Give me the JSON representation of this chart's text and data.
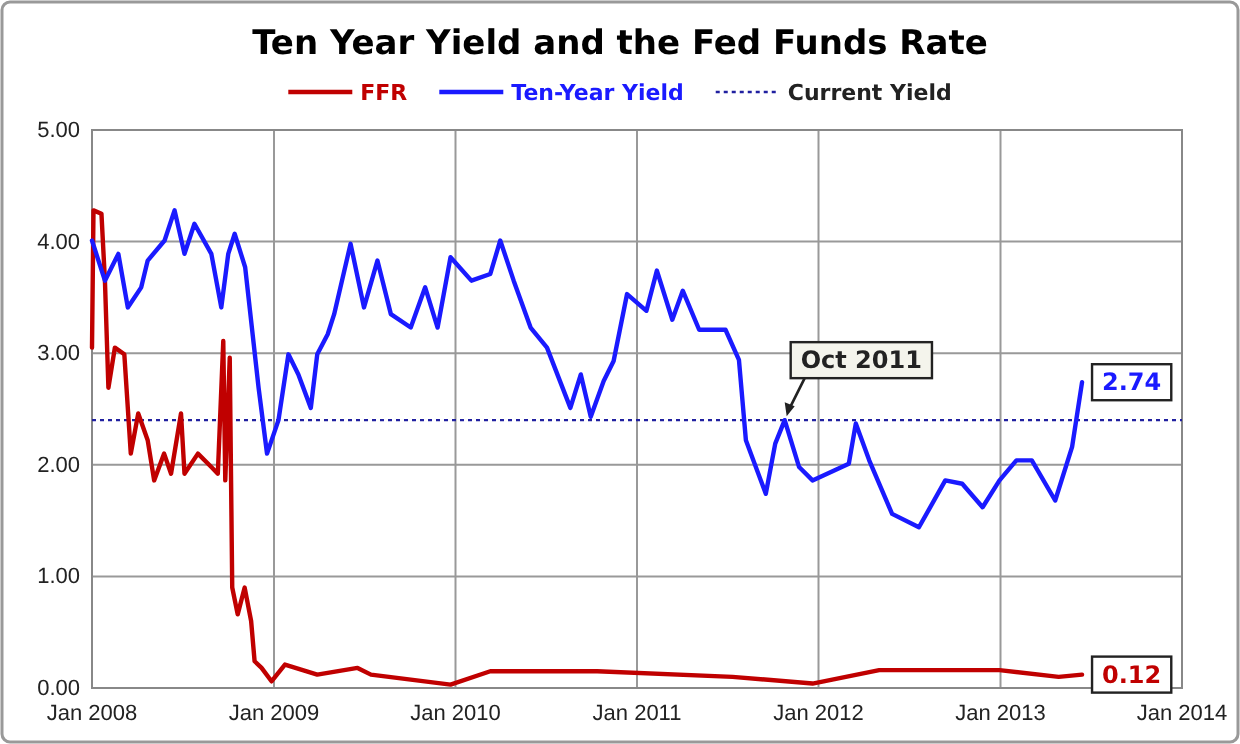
{
  "chart_data": {
    "type": "line",
    "title": "Ten Year Yield and the Fed Funds Rate",
    "xlim": [
      "2008-01-01",
      "2014-01-01"
    ],
    "xticks": [
      {
        "value": "2008-01-01",
        "label": "Jan 2008"
      },
      {
        "value": "2009-01-01",
        "label": "Jan 2009"
      },
      {
        "value": "2010-01-01",
        "label": "Jan 2010"
      },
      {
        "value": "2011-01-01",
        "label": "Jan 2011"
      },
      {
        "value": "2012-01-01",
        "label": "Jan 2012"
      },
      {
        "value": "2013-01-01",
        "label": "Jan 2013"
      },
      {
        "value": "2014-01-01",
        "label": "Jan 2014"
      }
    ],
    "ylim": [
      0,
      5
    ],
    "yticks": [
      {
        "value": 0,
        "label": "0.00"
      },
      {
        "value": 1,
        "label": "1.00"
      },
      {
        "value": 2,
        "label": "2.00"
      },
      {
        "value": 3,
        "label": "3.00"
      },
      {
        "value": 4,
        "label": "4.00"
      },
      {
        "value": 5,
        "label": "5.00"
      }
    ],
    "grid": true,
    "legend": "top",
    "marker": "none",
    "series": [
      {
        "name": "FFR",
        "color": "#c00000",
        "line_style": "solid",
        "x": [
          "2008-01-01",
          "2008-01-04",
          "2008-01-20",
          "2008-01-27",
          "2008-02-03",
          "2008-02-16",
          "2008-03-06",
          "2008-03-19",
          "2008-04-03",
          "2008-04-22",
          "2008-05-05",
          "2008-05-25",
          "2008-06-08",
          "2008-06-28",
          "2008-07-05",
          "2008-08-01",
          "2008-08-28",
          "2008-09-10",
          "2008-09-21",
          "2008-09-25",
          "2008-10-04",
          "2008-10-09",
          "2008-10-20",
          "2008-11-03",
          "2008-11-16",
          "2008-11-23",
          "2008-12-07",
          "2008-12-27",
          "2009-01-23",
          "2009-03-29",
          "2009-06-18",
          "2009-07-15",
          "2009-12-22",
          "2010-03-12",
          "2010-10-13",
          "2011-07-12",
          "2011-12-20",
          "2012-05-02",
          "2012-12-30",
          "2013-04-28",
          "2013-06-14"
        ],
        "values": [
          3.05,
          4.28,
          4.25,
          3.65,
          2.69,
          3.05,
          2.99,
          2.1,
          2.46,
          2.22,
          1.86,
          2.1,
          1.92,
          2.46,
          1.92,
          2.1,
          1.98,
          1.92,
          3.11,
          1.86,
          2.96,
          0.9,
          0.66,
          0.9,
          0.6,
          0.24,
          0.18,
          0.06,
          0.21,
          0.12,
          0.18,
          0.12,
          0.03,
          0.15,
          0.15,
          0.1,
          0.04,
          0.16,
          0.16,
          0.1,
          0.12
        ]
      },
      {
        "name": "Ten-Year Yield",
        "color": "#1a1aff",
        "line_style": "solid",
        "x": [
          "2008-01-01",
          "2008-01-14",
          "2008-01-27",
          "2008-02-23",
          "2008-03-13",
          "2008-04-09",
          "2008-04-22",
          "2008-05-26",
          "2008-06-15",
          "2008-07-05",
          "2008-07-25",
          "2008-08-28",
          "2008-09-17",
          "2008-10-01",
          "2008-10-14",
          "2008-11-04",
          "2008-12-01",
          "2008-12-18",
          "2009-01-10",
          "2009-01-30",
          "2009-02-19",
          "2009-03-16",
          "2009-03-29",
          "2009-04-19",
          "2009-05-02",
          "2009-06-04",
          "2009-07-01",
          "2009-07-28",
          "2009-08-24",
          "2009-10-03",
          "2009-11-01",
          "2009-11-26",
          "2009-12-22",
          "2010-02-02",
          "2010-03-12",
          "2010-04-01",
          "2010-04-28",
          "2010-06-01",
          "2010-07-04",
          "2010-08-20",
          "2010-09-10",
          "2010-09-30",
          "2010-10-26",
          "2010-11-15",
          "2010-12-12",
          "2011-01-20",
          "2011-02-10",
          "2011-03-13",
          "2011-04-03",
          "2011-05-06",
          "2011-06-28",
          "2011-07-25",
          "2011-08-08",
          "2011-09-17",
          "2011-10-06",
          "2011-10-25",
          "2011-11-23",
          "2011-12-20",
          "2012-03-02",
          "2012-03-16",
          "2012-04-12",
          "2012-05-28",
          "2012-07-21",
          "2012-09-12",
          "2012-10-16",
          "2012-11-26",
          "2012-12-30",
          "2013-02-02",
          "2013-03-05",
          "2013-04-21",
          "2013-05-25",
          "2013-06-14"
        ],
        "values": [
          4.01,
          3.83,
          3.65,
          3.89,
          3.41,
          3.59,
          3.83,
          4.01,
          4.28,
          3.89,
          4.16,
          3.89,
          3.41,
          3.89,
          4.07,
          3.77,
          2.69,
          2.1,
          2.4,
          2.99,
          2.81,
          2.51,
          2.99,
          3.17,
          3.35,
          3.98,
          3.41,
          3.83,
          3.35,
          3.23,
          3.59,
          3.23,
          3.86,
          3.65,
          3.71,
          4.01,
          3.65,
          3.23,
          3.05,
          2.51,
          2.81,
          2.43,
          2.75,
          2.93,
          3.53,
          3.38,
          3.74,
          3.3,
          3.56,
          3.21,
          3.21,
          2.94,
          2.22,
          1.74,
          2.19,
          2.4,
          1.98,
          1.86,
          2.01,
          2.37,
          2.04,
          1.56,
          1.44,
          1.86,
          1.83,
          1.62,
          1.86,
          2.04,
          2.04,
          1.68,
          2.16,
          2.74
        ]
      }
    ],
    "ref_lines": [
      {
        "axis": "y",
        "value": 2.4,
        "label": "Current Yield",
        "color": "#2020a0",
        "line_style": "dotted"
      }
    ],
    "annotations": [
      {
        "text": "Oct 2011",
        "x": "2011-10-25",
        "y": 2.4
      },
      {
        "text": "2.74",
        "x": "2013-06-14",
        "y": 2.74
      },
      {
        "text": "0.12",
        "x": "2013-06-14",
        "y": 0.12
      }
    ]
  }
}
